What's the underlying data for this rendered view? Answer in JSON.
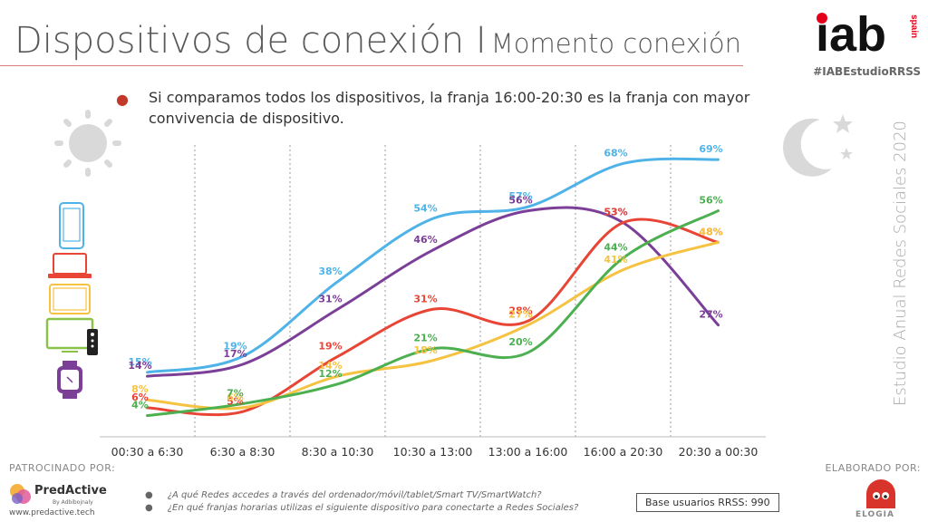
{
  "header": {
    "title_main": "Dispositivos de conexión I",
    "title_sub": "Momento conexión",
    "brand_main": "iab",
    "brand_suffix": "spain",
    "hashtag": "#IABEstudioRRSS"
  },
  "bullet": {
    "text": "Si comparamos todos los dispositivos, la franja 16:00-20:30 es la franja con mayor convivencia de dispositivo."
  },
  "side_label": "Estudio Anual Redes Sociales 2020",
  "footer": {
    "sponsor_label": "PATROCINADO POR:",
    "made_by_label": "ELABORADO POR:",
    "predactive_name": "PredActive",
    "predactive_by": "By Adbibojnaly",
    "predactive_url": "www.predactive.tech",
    "questions": [
      "¿A qué Redes accedes a través del ordenador/móvil/tablet/Smart TV/SmartWatch?",
      "¿En qué franjas horarias utilizas el siguiente dispositivo  para conectarte a Redes Sociales?"
    ],
    "base": "Base usuarios RRSS: 990",
    "elogia": "ELOGIA"
  },
  "icons": [
    "sun-icon",
    "moon-icon",
    "smartphone-icon",
    "laptop-icon",
    "tablet-icon",
    "smart-tv-icon",
    "smartwatch-icon"
  ],
  "chart_data": {
    "type": "line",
    "categories": [
      "00:30 a 6:30",
      "6:30 a 8:30",
      "8:30 a 10:30",
      "10:30 a 13:00",
      "13:00 a 16:00",
      "16:00 a 20:30",
      "20:30 a 00:30"
    ],
    "ylim": [
      0,
      75
    ],
    "series": [
      {
        "device": "smartphone",
        "color": "#4fb3e8",
        "values": [
          15,
          19,
          38,
          54,
          57,
          68,
          69
        ],
        "labels": [
          "15%",
          "19%",
          "38%",
          "54%",
          "57%",
          "68%",
          "69%"
        ]
      },
      {
        "device": "smartwatch",
        "color": "#7b3f98",
        "values": [
          14,
          17,
          31,
          46,
          56,
          53,
          27
        ],
        "labels": [
          "14%",
          "17%",
          "31%",
          "46%",
          "56%",
          "53%",
          "27%"
        ]
      },
      {
        "device": "laptop",
        "color": "#e84536",
        "values": [
          6,
          5,
          19,
          31,
          28,
          53,
          48
        ],
        "labels": [
          "6%",
          "5%",
          "19%",
          "31%",
          "28%",
          "53%",
          "48%"
        ]
      },
      {
        "device": "tablet",
        "color": "#f5c242",
        "values": [
          8,
          6,
          14,
          18,
          27,
          41,
          48
        ],
        "labels": [
          "8%",
          "6%",
          "14%",
          "18%",
          "27%",
          "41%",
          "48%"
        ]
      },
      {
        "device": "smart tv",
        "color": "#4caf50",
        "values": [
          4,
          7,
          12,
          21,
          20,
          44,
          56
        ],
        "labels": [
          "4%",
          "7%",
          "12%",
          "21%",
          "20%",
          "44%",
          "56%"
        ]
      }
    ]
  }
}
